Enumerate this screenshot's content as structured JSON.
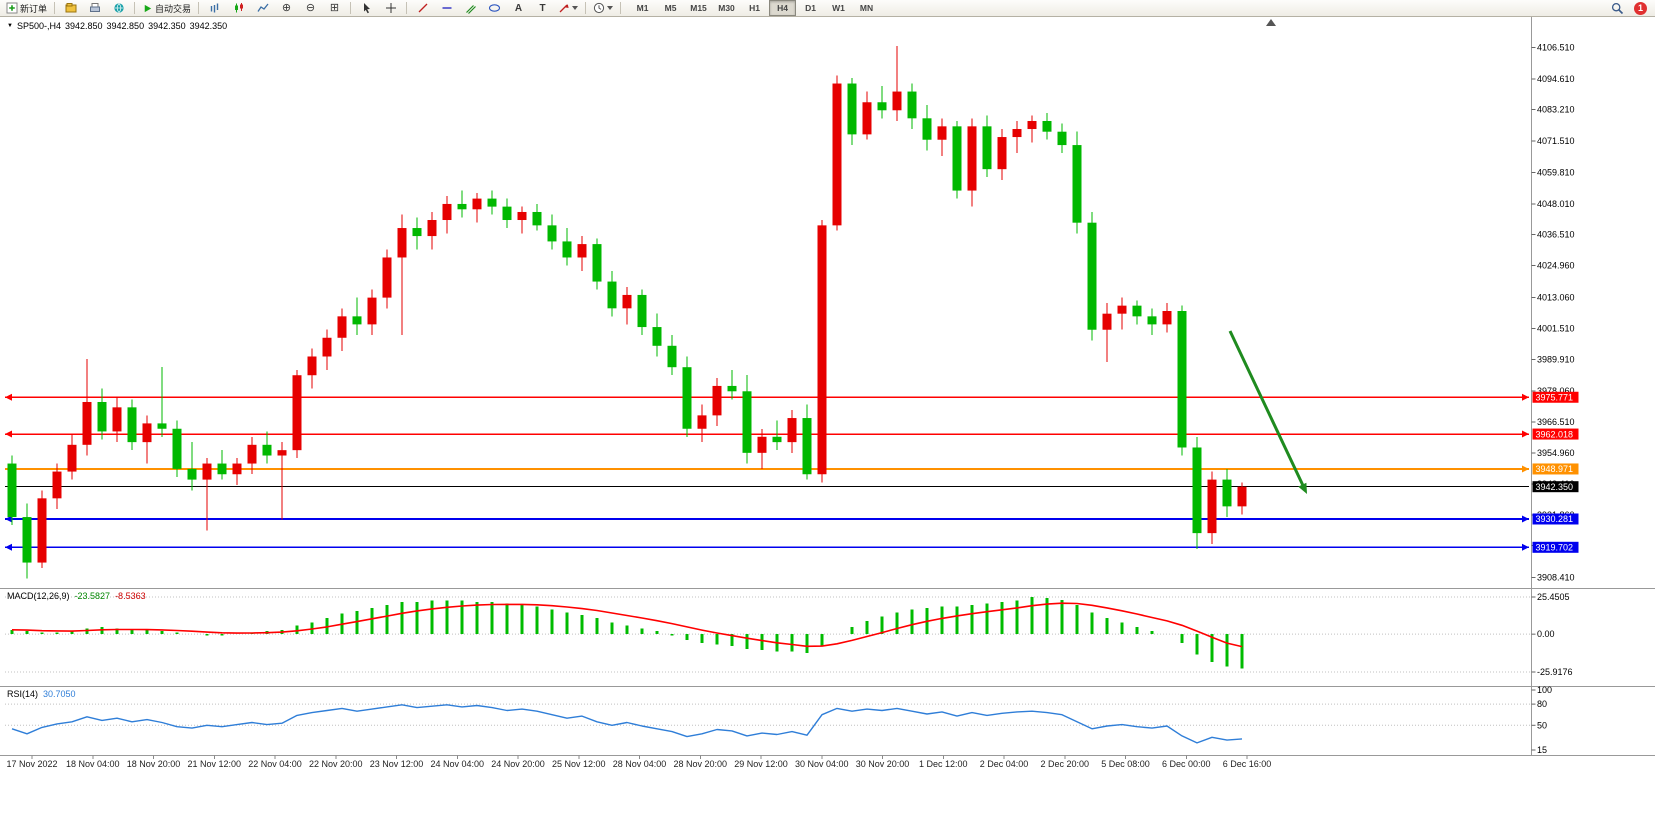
{
  "toolbar": {
    "new_order_label": "新订单",
    "autotrading_label": "自动交易",
    "timeframes": [
      "M1",
      "M5",
      "M15",
      "M30",
      "H1",
      "H4",
      "D1",
      "W1",
      "MN"
    ],
    "active_timeframe": "H4",
    "notification_badge": "1"
  },
  "quote_line": {
    "symbol": "SP500-,H4",
    "open": "3942.850",
    "high": "3942.850",
    "low": "3942.350",
    "close": "3942.350"
  },
  "indicators": {
    "macd": {
      "name": "MACD(12,26,9)",
      "value_main": "-23.5827",
      "value_signal": "-8.5363",
      "scale": [
        "25.4505",
        "0.00",
        "-25.9176"
      ],
      "histogram_color": "#00BB00",
      "signal_color": "#FF0000"
    },
    "rsi": {
      "name": "RSI(14)",
      "value": "30.7050",
      "scale": [
        "100",
        "80",
        "50",
        "15"
      ],
      "line_color": "#2F7ED8"
    }
  },
  "price_axis": {
    "ticks": [
      "4106.510",
      "4094.610",
      "4083.210",
      "4071.510",
      "4059.810",
      "4048.010",
      "4036.510",
      "4024.960",
      "4013.060",
      "4001.510",
      "3989.910",
      "3978.060",
      "3966.510",
      "3954.960",
      "3943.410",
      "3931.860",
      "3920.310",
      "3908.410"
    ]
  },
  "price_lines": [
    {
      "label": "3975.771",
      "price": 3975.771,
      "color": "#FF0000",
      "arrows": true
    },
    {
      "label": "3962.018",
      "price": 3962.018,
      "color": "#FF0000",
      "arrows": true
    },
    {
      "label": "3948.971",
      "price": 3948.971,
      "color": "#FF9100",
      "arrows": true
    },
    {
      "label": "3942.350",
      "price": 3942.35,
      "color": "#000000",
      "arrows": false,
      "current_price": true
    },
    {
      "label": "3930.281",
      "price": 3930.281,
      "color": "#0000EE",
      "arrows": true
    },
    {
      "label": "3919.702",
      "price": 3919.702,
      "color": "#0000EE",
      "arrows": true
    }
  ],
  "time_axis": {
    "labels": [
      "17 Nov 2022",
      "18 Nov 04:00",
      "18 Nov 20:00",
      "21 Nov 12:00",
      "22 Nov 04:00",
      "22 Nov 20:00",
      "23 Nov 12:00",
      "24 Nov 04:00",
      "24 Nov 20:00",
      "25 Nov 12:00",
      "28 Nov 04:00",
      "28 Nov 20:00",
      "29 Nov 12:00",
      "30 Nov 04:00",
      "30 Nov 20:00",
      "1 Dec 12:00",
      "2 Dec 04:00",
      "2 Dec 20:00",
      "5 Dec 08:00",
      "6 Dec 00:00",
      "6 Dec 16:00"
    ]
  },
  "annotations": {
    "trend_arrow": {
      "direction": "down-right",
      "color": "#1F8B1F"
    }
  },
  "chart_data": [
    {
      "type": "bar",
      "subtype": "candlestick",
      "name": "SP500- H4 candles",
      "up_color": "#E60000",
      "down_color": "#00B800",
      "ohlc": [
        [
          3951,
          3954,
          3928,
          3931
        ],
        [
          3931,
          3936,
          3908,
          3914
        ],
        [
          3914,
          3941,
          3912,
          3938
        ],
        [
          3938,
          3951,
          3934,
          3948
        ],
        [
          3948,
          3962,
          3945,
          3958
        ],
        [
          3958,
          3990,
          3954,
          3974
        ],
        [
          3974,
          3979,
          3960,
          3963
        ],
        [
          3963,
          3976,
          3959,
          3972
        ],
        [
          3972,
          3975,
          3956,
          3959
        ],
        [
          3959,
          3969,
          3951,
          3966
        ],
        [
          3966,
          3987,
          3961,
          3964
        ],
        [
          3964,
          3967,
          3946,
          3949
        ],
        [
          3949,
          3959,
          3941,
          3945
        ],
        [
          3945,
          3953,
          3926,
          3951
        ],
        [
          3951,
          3956,
          3945,
          3947
        ],
        [
          3947,
          3953,
          3943,
          3951
        ],
        [
          3951,
          3961,
          3947,
          3958
        ],
        [
          3958,
          3963,
          3951,
          3954
        ],
        [
          3954,
          3959,
          3930,
          3956
        ],
        [
          3956,
          3986,
          3953,
          3984
        ],
        [
          3984,
          3994,
          3979,
          3991
        ],
        [
          3991,
          4001,
          3986,
          3998
        ],
        [
          3998,
          4009,
          3993,
          4006
        ],
        [
          4006,
          4013,
          3999,
          4003
        ],
        [
          4003,
          4016,
          3999,
          4013
        ],
        [
          4013,
          4031,
          4009,
          4028
        ],
        [
          4028,
          4044,
          3999,
          4039
        ],
        [
          4039,
          4043,
          4031,
          4036
        ],
        [
          4036,
          4045,
          4031,
          4042
        ],
        [
          4042,
          4051,
          4037,
          4048
        ],
        [
          4048,
          4053,
          4043,
          4046
        ],
        [
          4046,
          4052,
          4041,
          4050
        ],
        [
          4050,
          4053,
          4044,
          4047
        ],
        [
          4047,
          4050,
          4039,
          4042
        ],
        [
          4042,
          4047,
          4037,
          4045
        ],
        [
          4045,
          4048,
          4038,
          4040
        ],
        [
          4040,
          4044,
          4031,
          4034
        ],
        [
          4034,
          4039,
          4025,
          4028
        ],
        [
          4028,
          4036,
          4023,
          4033
        ],
        [
          4033,
          4035,
          4016,
          4019
        ],
        [
          4019,
          4023,
          4006,
          4009
        ],
        [
          4009,
          4017,
          4003,
          4014
        ],
        [
          4014,
          4016,
          3999,
          4002
        ],
        [
          4002,
          4007,
          3991,
          3995
        ],
        [
          3995,
          3999,
          3984,
          3987
        ],
        [
          3987,
          3991,
          3961,
          3964
        ],
        [
          3964,
          3973,
          3959,
          3969
        ],
        [
          3969,
          3983,
          3965,
          3980
        ],
        [
          3980,
          3986,
          3975,
          3978
        ],
        [
          3978,
          3984,
          3951,
          3955
        ],
        [
          3955,
          3964,
          3949,
          3961
        ],
        [
          3961,
          3967,
          3956,
          3959
        ],
        [
          3959,
          3971,
          3955,
          3968
        ],
        [
          3968,
          3973,
          3945,
          3947
        ],
        [
          3947,
          4042,
          3944,
          4040
        ],
        [
          4040,
          4096,
          4038,
          4093
        ],
        [
          4093,
          4095,
          4070,
          4074
        ],
        [
          4074,
          4090,
          4072,
          4086
        ],
        [
          4086,
          4092,
          4080,
          4083
        ],
        [
          4083,
          4107,
          4079,
          4090
        ],
        [
          4090,
          4093,
          4076,
          4080
        ],
        [
          4080,
          4085,
          4068,
          4072
        ],
        [
          4072,
          4080,
          4066,
          4077
        ],
        [
          4077,
          4079,
          4050,
          4053
        ],
        [
          4053,
          4080,
          4047,
          4077
        ],
        [
          4077,
          4081,
          4058,
          4061
        ],
        [
          4061,
          4076,
          4057,
          4073
        ],
        [
          4073,
          4079,
          4067,
          4076
        ],
        [
          4076,
          4081,
          4071,
          4079
        ],
        [
          4079,
          4082,
          4072,
          4075
        ],
        [
          4075,
          4078,
          4067,
          4070
        ],
        [
          4070,
          4075,
          4037,
          4041
        ],
        [
          4041,
          4045,
          3997,
          4001
        ],
        [
          4001,
          4011,
          3989,
          4007
        ],
        [
          4007,
          4013,
          4001,
          4010
        ],
        [
          4010,
          4012,
          4003,
          4006
        ],
        [
          4006,
          4009,
          3999,
          4003
        ],
        [
          4003,
          4011,
          4000,
          4008
        ],
        [
          4008,
          4010,
          3954,
          3957
        ],
        [
          3957,
          3961,
          3919,
          3925
        ],
        [
          3925,
          3948,
          3921,
          3945
        ],
        [
          3945,
          3949,
          3931,
          3935
        ],
        [
          3935,
          3944,
          3932,
          3942.35
        ]
      ]
    },
    {
      "type": "bar",
      "name": "MACD(12,26,9) histogram",
      "color": "#00BB00",
      "values": [
        3,
        2,
        1,
        1,
        2,
        4,
        5,
        4,
        3,
        3,
        2,
        1,
        0,
        -1,
        -1,
        0,
        1,
        2,
        3,
        6,
        8,
        11,
        14,
        16,
        18,
        20,
        22,
        22,
        23,
        23,
        23,
        22,
        22,
        21,
        20,
        19,
        17,
        15,
        13,
        11,
        8,
        6,
        4,
        2,
        -1,
        -4,
        -6,
        -7,
        -8,
        -10,
        -11,
        -12,
        -12,
        -13,
        -8,
        0,
        5,
        9,
        12,
        15,
        17,
        18,
        19,
        19,
        20,
        21,
        22,
        23,
        25.45,
        24.8,
        23.5,
        20,
        15,
        11,
        8,
        5,
        2,
        0,
        -6,
        -14,
        -19,
        -22,
        -23.58
      ]
    },
    {
      "type": "line",
      "name": "MACD signal",
      "color": "#FF0000",
      "values": [
        3.0,
        2.8,
        2.4,
        2.2,
        2.1,
        2.5,
        3.0,
        3.2,
        3.2,
        3.1,
        2.9,
        2.5,
        2.0,
        1.4,
        0.9,
        0.7,
        0.8,
        1.0,
        1.4,
        2.3,
        3.5,
        5.0,
        6.8,
        8.6,
        10.5,
        12.4,
        14.3,
        15.9,
        17.3,
        18.4,
        19.3,
        19.9,
        20.3,
        20.4,
        20.4,
        20.1,
        19.5,
        18.6,
        17.5,
        16.2,
        14.5,
        12.8,
        11.1,
        9.2,
        7.2,
        5.0,
        2.8,
        0.8,
        -1.0,
        -2.8,
        -4.4,
        -5.9,
        -7.1,
        -8.3,
        -8.2,
        -6.6,
        -4.3,
        -1.6,
        1.1,
        3.9,
        6.5,
        8.8,
        10.8,
        12.5,
        14.0,
        15.4,
        16.7,
        18.0,
        19.5,
        20.6,
        21.2,
        21.0,
        19.8,
        18.0,
        16.0,
        13.8,
        11.4,
        9.1,
        6.1,
        2.1,
        -2.1,
        -6.1,
        -8.54
      ]
    },
    {
      "type": "line",
      "name": "RSI(14)",
      "color": "#2F7ED8",
      "values": [
        45,
        38,
        47,
        52,
        55,
        62,
        57,
        60,
        55,
        58,
        54,
        48,
        46,
        50,
        48,
        51,
        54,
        51,
        53,
        64,
        68,
        71,
        74,
        70,
        73,
        76,
        79,
        75,
        77,
        79,
        76,
        78,
        75,
        71,
        73,
        70,
        65,
        60,
        63,
        55,
        50,
        54,
        49,
        45,
        41,
        34,
        38,
        44,
        42,
        35,
        39,
        37,
        41,
        36,
        65,
        74,
        70,
        73,
        71,
        74,
        70,
        66,
        69,
        63,
        68,
        64,
        67,
        69,
        70,
        68,
        65,
        55,
        45,
        49,
        51,
        48,
        46,
        49,
        35,
        25,
        33,
        29,
        30.7
      ]
    }
  ]
}
